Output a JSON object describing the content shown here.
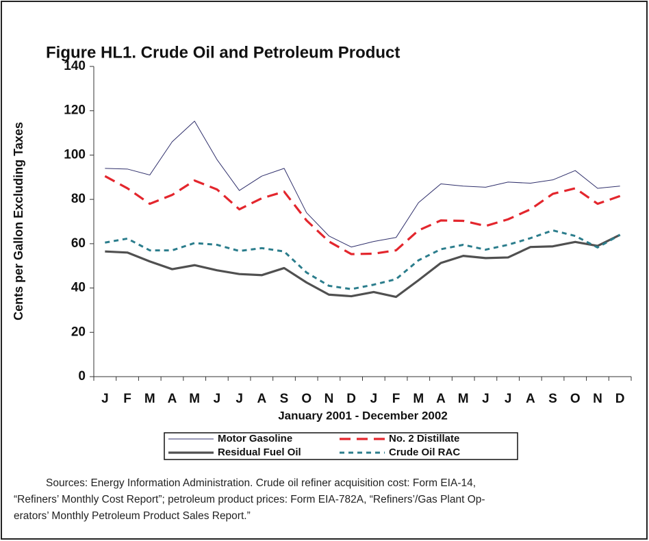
{
  "chart_data": {
    "type": "line",
    "title": "Figure HL1.  Crude Oil and Petroleum Product",
    "x_label": "January 2001 - December 2002",
    "y_label": "Cents per Gallon Excluding Taxes",
    "categories": [
      "J",
      "F",
      "M",
      "A",
      "M",
      "J",
      "J",
      "A",
      "S",
      "O",
      "N",
      "D",
      "J",
      "F",
      "M",
      "A",
      "M",
      "J",
      "J",
      "A",
      "S",
      "O",
      "N",
      "D"
    ],
    "ylim": [
      0,
      140
    ],
    "yticks": [
      0,
      20,
      40,
      60,
      80,
      100,
      120,
      140
    ],
    "grid": false,
    "legend": "bottom",
    "series": [
      {
        "name": "Motor Gasoline",
        "color": "#2f2f6b",
        "dash": "solid",
        "values": [
          94,
          93.7,
          91,
          106,
          115.3,
          98,
          84,
          90.5,
          94,
          74,
          63.5,
          58.5,
          61,
          62.8,
          78.5,
          87,
          86,
          85.5,
          87.8,
          87.3,
          88.8,
          93,
          85,
          86
        ]
      },
      {
        "name": "No. 2 Distillate",
        "color": "#e3262d",
        "dash": "dashed",
        "values": [
          90.5,
          85,
          78,
          82,
          88.5,
          84.5,
          75.5,
          80.5,
          83.5,
          70.5,
          61,
          55.3,
          55.5,
          57,
          66,
          70.5,
          70.3,
          68,
          71,
          75.5,
          82.5,
          85,
          78,
          81.5
        ]
      },
      {
        "name": "Residual Fuel Oil",
        "color": "#505050",
        "dash": "solid-thick",
        "values": [
          56.5,
          56,
          52,
          48.5,
          50.3,
          48,
          46.3,
          45.8,
          49,
          42.5,
          37,
          36.3,
          38.2,
          36,
          43.5,
          51.3,
          54.5,
          53.5,
          53.8,
          58.5,
          58.8,
          60.8,
          59,
          64
        ]
      },
      {
        "name": "Crude Oil RAC",
        "color": "#2b7d8c",
        "dash": "dotted",
        "values": [
          60.5,
          62.3,
          57,
          57,
          60.3,
          59.5,
          56.7,
          58,
          56.5,
          47,
          41,
          39.5,
          41.5,
          44,
          52.5,
          57.5,
          59.5,
          57.3,
          59.5,
          62.5,
          66,
          63.5,
          58.3,
          64
        ]
      }
    ],
    "source_lines": [
      "Sources:  Energy Information Administration.  Crude oil refiner acquisition cost:  Form EIA-14,",
      "“Refiners’ Monthly Cost Report”; petroleum product prices:  Form EIA-782A, “Refiners’/Gas Plant Op-",
      "erators’ Monthly Petroleum Product Sales Report.”"
    ]
  }
}
